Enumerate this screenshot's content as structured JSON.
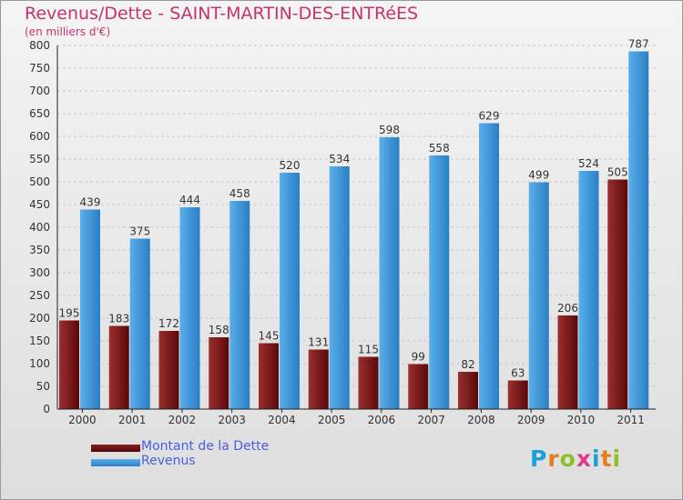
{
  "title": "Revenus/Dette - SAINT-MARTIN-DES-ENTRéES",
  "subtitle": "(en milliers d'€)",
  "logo": {
    "text": "Proxiti",
    "letters": [
      "P",
      "r",
      "o",
      "x",
      "i",
      "t",
      "i"
    ],
    "colors": [
      "#1aa1d8",
      "#e87d1e",
      "#8fbf2a",
      "#e23a8b",
      "#1aa1d8",
      "#e87d1e",
      "#8fbf2a"
    ]
  },
  "colors": {
    "title": "#c7326e",
    "dette": "#7a1a1a",
    "revenus": "#3d97dc",
    "legend_text": "#4a5de0"
  },
  "legend": [
    {
      "label": "Montant de la Dette",
      "color": "#6b1010"
    },
    {
      "label": "Revenus",
      "color": "#3d97dc"
    }
  ],
  "chart_data": {
    "type": "bar",
    "categories": [
      "2000",
      "2001",
      "2002",
      "2003",
      "2004",
      "2005",
      "2006",
      "2007",
      "2008",
      "2009",
      "2010",
      "2011"
    ],
    "series": [
      {
        "name": "Montant de la Dette",
        "values": [
          195,
          183,
          172,
          158,
          145,
          131,
          115,
          99,
          82,
          63,
          206,
          505
        ]
      },
      {
        "name": "Revenus",
        "values": [
          439,
          375,
          444,
          458,
          520,
          534,
          598,
          558,
          629,
          499,
          524,
          787
        ]
      }
    ],
    "ylim": [
      0,
      800
    ],
    "yticks": [
      0,
      50,
      100,
      150,
      200,
      250,
      300,
      350,
      400,
      450,
      500,
      550,
      600,
      650,
      700,
      750,
      800
    ],
    "grid": true,
    "legend_position": "bottom-left"
  }
}
